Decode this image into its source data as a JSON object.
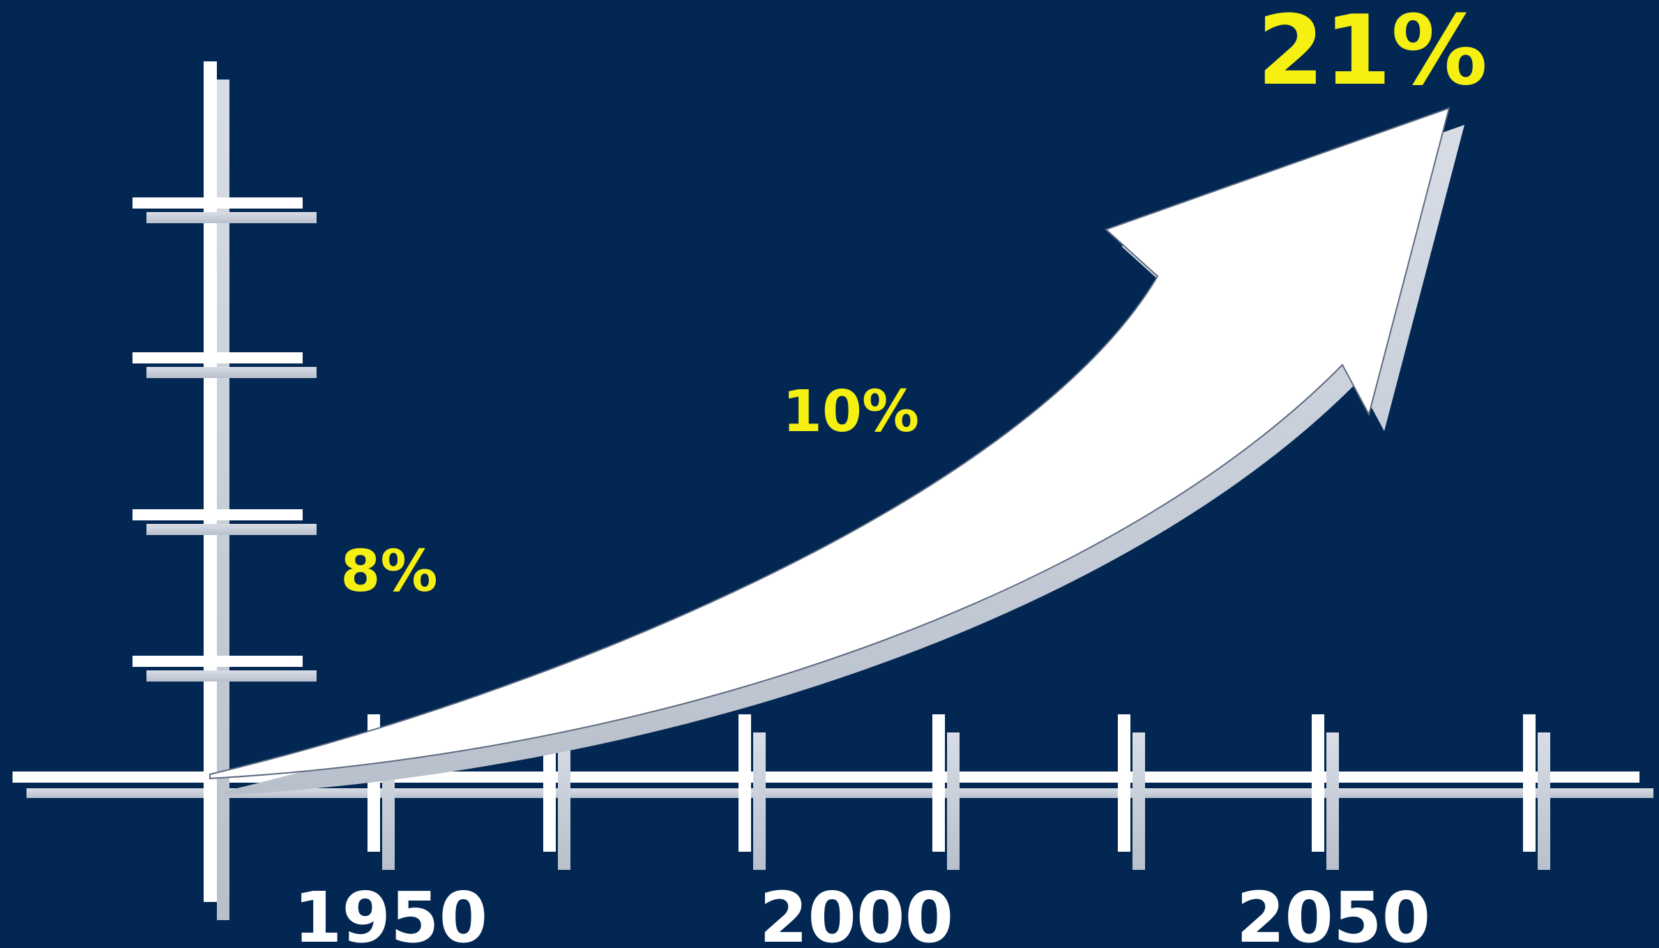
{
  "chart_data": {
    "type": "line",
    "x": [
      1950,
      2000,
      2050
    ],
    "values": [
      8,
      10,
      21
    ],
    "value_labels": [
      "8%",
      "10%",
      "21%"
    ],
    "categories": [
      "1950",
      "2000",
      "2050"
    ],
    "title": "",
    "xlabel": "",
    "ylabel": "",
    "grid": false,
    "background_color": "#022752",
    "axis_color": "#ffffff",
    "arrow_color": "#ffffff",
    "value_label_color": "#f5f012",
    "tick_label_color": "#ffffff"
  }
}
